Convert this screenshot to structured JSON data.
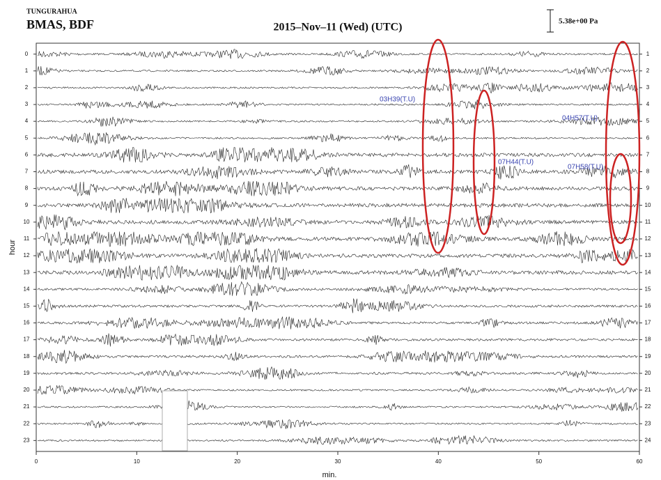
{
  "header": {
    "station": "TUNGURAHUA",
    "channel": "BMAS, BDF",
    "date": "2015–Nov–11 (Wed) (UTC)",
    "scale": "5.38e+00 Pa"
  },
  "annotations": [
    "03H39(T.U)",
    "04H57(T.U)",
    "07H44(T.U)",
    "07H58(T.U)"
  ],
  "chart_data": {
    "type": "helicorder",
    "xlabel": "min.",
    "ylabel": "hour",
    "xlim": [
      0,
      60
    ],
    "xticks": [
      0,
      10,
      20,
      30,
      40,
      50,
      60
    ],
    "ylim": [
      -0.65,
      23.65
    ],
    "yticks": [
      0,
      1,
      2,
      3,
      4,
      5,
      6,
      7,
      8,
      9,
      10,
      11,
      12,
      13,
      14,
      15,
      16,
      17,
      18,
      19,
      20,
      21,
      22,
      23
    ],
    "y2lim": [
      0.35,
      24.65
    ],
    "y2ticks": [
      1,
      2,
      3,
      4,
      5,
      6,
      7,
      8,
      9,
      10,
      11,
      12,
      13,
      14,
      15,
      16,
      17,
      18,
      19,
      20,
      21,
      22,
      23,
      24
    ],
    "color": "#222222",
    "highlight_color": "#cc2222"
  }
}
